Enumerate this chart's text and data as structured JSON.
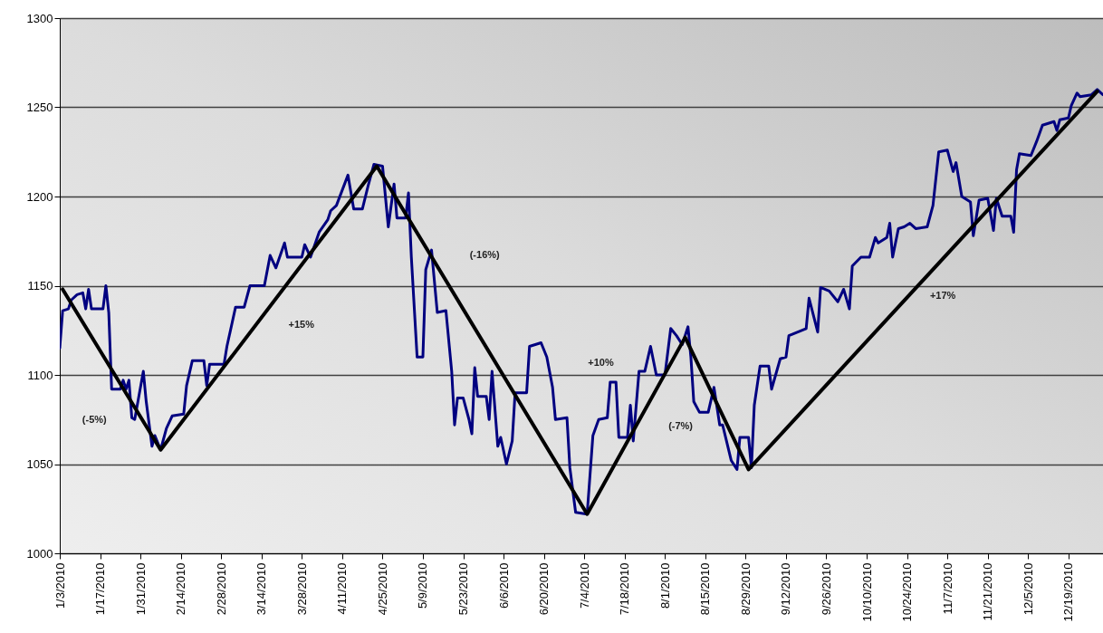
{
  "chart_data": {
    "type": "line",
    "xlim": [
      "2010-01-03",
      "2010-12-31"
    ],
    "ylim": [
      1000,
      1300
    ],
    "yticks": [
      1000,
      1050,
      1100,
      1150,
      1200,
      1250,
      1300
    ],
    "xticks": [
      {
        "value": "2010-01-03",
        "label": "1/3/2010"
      },
      {
        "value": "2010-01-17",
        "label": "1/17/2010"
      },
      {
        "value": "2010-01-31",
        "label": "1/31/2010"
      },
      {
        "value": "2010-02-14",
        "label": "2/14/2010"
      },
      {
        "value": "2010-02-28",
        "label": "2/28/2010"
      },
      {
        "value": "2010-03-14",
        "label": "3/14/2010"
      },
      {
        "value": "2010-03-28",
        "label": "3/28/2010"
      },
      {
        "value": "2010-04-11",
        "label": "4/11/2010"
      },
      {
        "value": "2010-04-25",
        "label": "4/25/2010"
      },
      {
        "value": "2010-05-09",
        "label": "5/9/2010"
      },
      {
        "value": "2010-05-23",
        "label": "5/23/2010"
      },
      {
        "value": "2010-06-06",
        "label": "6/6/2010"
      },
      {
        "value": "2010-06-20",
        "label": "6/20/2010"
      },
      {
        "value": "2010-07-04",
        "label": "7/4/2010"
      },
      {
        "value": "2010-07-18",
        "label": "7/18/2010"
      },
      {
        "value": "2010-08-01",
        "label": "8/1/2010"
      },
      {
        "value": "2010-08-15",
        "label": "8/15/2010"
      },
      {
        "value": "2010-08-29",
        "label": "8/29/2010"
      },
      {
        "value": "2010-09-12",
        "label": "9/12/2010"
      },
      {
        "value": "2010-09-26",
        "label": "9/26/2010"
      },
      {
        "value": "2010-10-10",
        "label": "10/10/2010"
      },
      {
        "value": "2010-10-24",
        "label": "10/24/2010"
      },
      {
        "value": "2010-11-07",
        "label": "11/7/2010"
      },
      {
        "value": "2010-11-21",
        "label": "11/21/2010"
      },
      {
        "value": "2010-12-05",
        "label": "12/5/2010"
      },
      {
        "value": "2010-12-19",
        "label": "12/19/2010"
      }
    ],
    "grid": "y",
    "line_style": "solid",
    "series": [
      {
        "color": "#000080",
        "x": [
          "2010-01-03",
          "2010-01-04",
          "2010-01-06",
          "2010-01-07",
          "2010-01-09",
          "2010-01-11",
          "2010-01-12",
          "2010-01-13",
          "2010-01-14",
          "2010-01-18",
          "2010-01-19",
          "2010-01-20",
          "2010-01-21",
          "2010-01-24",
          "2010-01-25",
          "2010-01-26",
          "2010-01-27",
          "2010-01-28",
          "2010-01-29",
          "2010-02-01",
          "2010-02-02",
          "2010-02-04",
          "2010-02-05",
          "2010-02-07",
          "2010-02-09",
          "2010-02-11",
          "2010-02-15",
          "2010-02-16",
          "2010-02-18",
          "2010-02-22",
          "2010-02-23",
          "2010-02-24",
          "2010-03-01",
          "2010-03-02",
          "2010-03-05",
          "2010-03-08",
          "2010-03-10",
          "2010-03-15",
          "2010-03-17",
          "2010-03-19",
          "2010-03-22",
          "2010-03-23",
          "2010-03-28",
          "2010-03-29",
          "2010-03-31",
          "2010-04-03",
          "2010-04-06",
          "2010-04-07",
          "2010-04-09",
          "2010-04-13",
          "2010-04-15",
          "2010-04-18",
          "2010-04-20",
          "2010-04-22",
          "2010-04-25",
          "2010-04-27",
          "2010-04-29",
          "2010-04-30",
          "2010-05-03",
          "2010-05-04",
          "2010-05-05",
          "2010-05-07",
          "2010-05-09",
          "2010-05-10",
          "2010-05-12",
          "2010-05-14",
          "2010-05-17",
          "2010-05-19",
          "2010-05-20",
          "2010-05-21",
          "2010-05-23",
          "2010-05-25",
          "2010-05-26",
          "2010-05-27",
          "2010-05-28",
          "2010-05-31",
          "2010-06-01",
          "2010-06-02",
          "2010-06-04",
          "2010-06-05",
          "2010-06-07",
          "2010-06-09",
          "2010-06-10",
          "2010-06-14",
          "2010-06-15",
          "2010-06-19",
          "2010-06-21",
          "2010-06-23",
          "2010-06-24",
          "2010-06-28",
          "2010-06-29",
          "2010-07-01",
          "2010-07-05",
          "2010-07-07",
          "2010-07-09",
          "2010-07-12",
          "2010-07-13",
          "2010-07-15",
          "2010-07-16",
          "2010-07-19",
          "2010-07-20",
          "2010-07-21",
          "2010-07-23",
          "2010-07-25",
          "2010-07-27",
          "2010-07-29",
          "2010-08-01",
          "2010-08-03",
          "2010-08-05",
          "2010-08-07",
          "2010-08-09",
          "2010-08-10",
          "2010-08-11",
          "2010-08-13",
          "2010-08-16",
          "2010-08-18",
          "2010-08-20",
          "2010-08-21",
          "2010-08-24",
          "2010-08-26",
          "2010-08-27",
          "2010-08-30",
          "2010-08-31",
          "2010-09-01",
          "2010-09-03",
          "2010-09-06",
          "2010-09-07",
          "2010-09-10",
          "2010-09-12",
          "2010-09-13",
          "2010-09-19",
          "2010-09-20",
          "2010-09-23",
          "2010-09-24",
          "2010-09-27",
          "2010-09-30",
          "2010-10-02",
          "2010-10-04",
          "2010-10-05",
          "2010-10-08",
          "2010-10-11",
          "2010-10-13",
          "2010-10-14",
          "2010-10-17",
          "2010-10-18",
          "2010-10-19",
          "2010-10-21",
          "2010-10-23",
          "2010-10-25",
          "2010-10-27",
          "2010-10-31",
          "2010-11-02",
          "2010-11-04",
          "2010-11-07",
          "2010-11-09",
          "2010-11-10",
          "2010-11-12",
          "2010-11-15",
          "2010-11-16",
          "2010-11-18",
          "2010-11-21",
          "2010-11-23",
          "2010-11-24",
          "2010-11-26",
          "2010-11-29",
          "2010-11-30",
          "2010-12-01",
          "2010-12-02",
          "2010-12-06",
          "2010-12-08",
          "2010-12-10",
          "2010-12-14",
          "2010-12-15",
          "2010-12-16",
          "2010-12-19",
          "2010-12-20",
          "2010-12-22",
          "2010-12-23",
          "2010-12-27",
          "2010-12-29",
          "2010-12-31"
        ],
        "values": [
          1115,
          1136,
          1137,
          1142,
          1145,
          1146,
          1137,
          1148,
          1137,
          1137,
          1150,
          1135,
          1092,
          1092,
          1097,
          1092,
          1097,
          1076,
          1075,
          1102,
          1085,
          1060,
          1066,
          1058,
          1070,
          1077,
          1078,
          1094,
          1108,
          1108,
          1094,
          1106,
          1106,
          1116,
          1138,
          1138,
          1150,
          1150,
          1167,
          1160,
          1174,
          1166,
          1166,
          1173,
          1166,
          1180,
          1187,
          1192,
          1195,
          1212,
          1193,
          1193,
          1206,
          1218,
          1217,
          1183,
          1207,
          1188,
          1188,
          1202,
          1166,
          1110,
          1110,
          1159,
          1170,
          1135,
          1136,
          1102,
          1072,
          1087,
          1087,
          1075,
          1067,
          1104,
          1088,
          1088,
          1075,
          1102,
          1060,
          1065,
          1050,
          1063,
          1090,
          1090,
          1116,
          1118,
          1110,
          1093,
          1075,
          1076,
          1048,
          1023,
          1022,
          1066,
          1075,
          1076,
          1096,
          1096,
          1065,
          1065,
          1083,
          1063,
          1102,
          1102,
          1116,
          1100,
          1100,
          1126,
          1122,
          1117,
          1127,
          1110,
          1085,
          1079,
          1079,
          1093,
          1072,
          1072,
          1052,
          1047,
          1065,
          1065,
          1048,
          1083,
          1105,
          1105,
          1092,
          1109,
          1110,
          1122,
          1126,
          1143,
          1124,
          1149,
          1147,
          1141,
          1148,
          1137,
          1161,
          1166,
          1166,
          1177,
          1174,
          1177,
          1185,
          1166,
          1182,
          1183,
          1185,
          1182,
          1183,
          1195,
          1225,
          1226,
          1214,
          1219,
          1200,
          1197,
          1178,
          1198,
          1199,
          1181,
          1199,
          1189,
          1189,
          1180,
          1215,
          1224,
          1223,
          1231,
          1240,
          1242,
          1237,
          1243,
          1244,
          1251,
          1258,
          1256,
          1257,
          1260,
          1257
        ]
      },
      {
        "color": "#000000",
        "x": [
          "2010-01-04",
          "2010-02-07",
          "2010-04-23",
          "2010-07-05",
          "2010-08-08",
          "2010-08-30",
          "2010-12-29"
        ],
        "values": [
          1148,
          1058,
          1217,
          1022,
          1121,
          1047,
          1259
        ]
      }
    ],
    "annotations": [
      "(-5%)",
      "+15%",
      "(-16%)",
      "+10%",
      "(-7%)",
      "+17%"
    ]
  }
}
